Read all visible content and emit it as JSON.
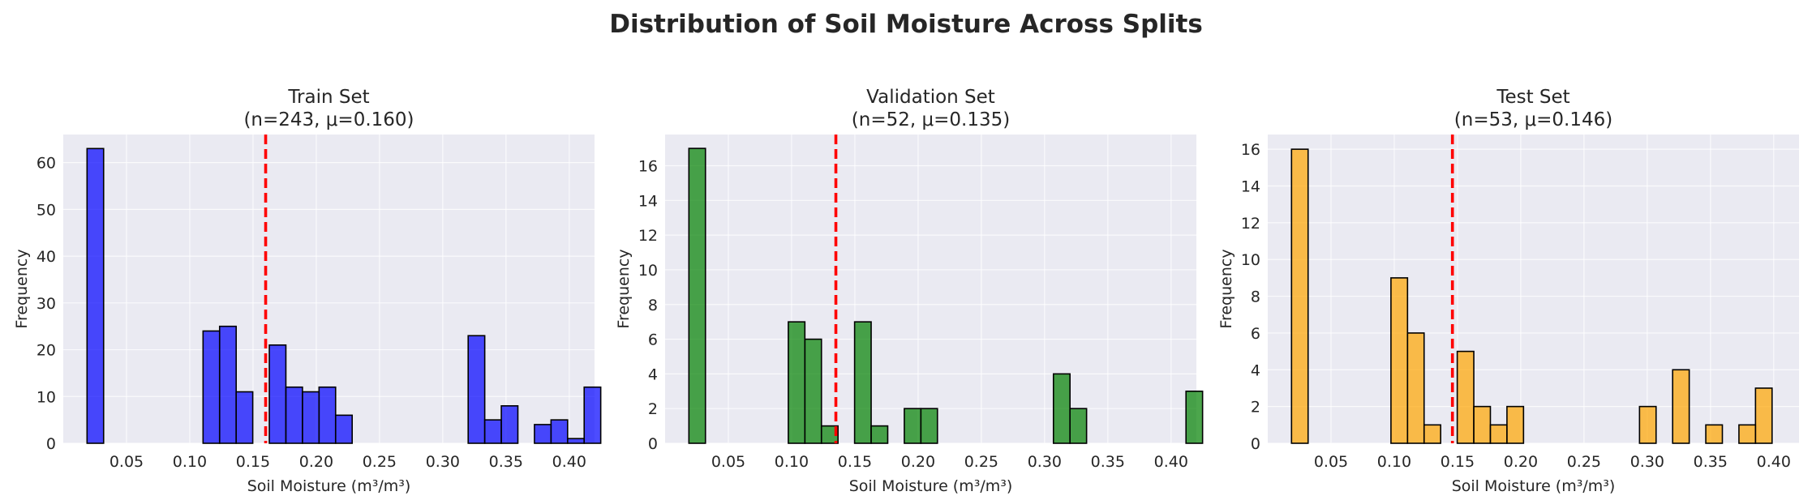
{
  "title": "Distribution of Soil Moisture Across Splits",
  "chart_data": [
    {
      "type": "bar",
      "title_line1": "Train Set",
      "title_line2": "(n=243, μ=0.160)",
      "xlabel": "Soil Moisture (m³/m³)",
      "ylabel": "Frequency",
      "xlim": [
        0.0,
        0.42
      ],
      "ylim": [
        0,
        66
      ],
      "xticks": [
        0.05,
        0.1,
        0.15,
        0.2,
        0.25,
        0.3,
        0.35,
        0.4
      ],
      "xtick_labels": [
        "0.05",
        "0.10",
        "0.15",
        "0.20",
        "0.25",
        "0.30",
        "0.35",
        "0.40"
      ],
      "yticks": [
        0,
        10,
        20,
        30,
        40,
        50,
        60
      ],
      "ytick_labels": [
        "0",
        "10",
        "20",
        "30",
        "40",
        "50",
        "60"
      ],
      "bin_start": 0.0188,
      "bin_width": 0.0131,
      "counts": [
        63,
        0,
        0,
        0,
        0,
        0,
        0,
        24,
        25,
        11,
        0,
        21,
        12,
        11,
        12,
        6,
        0,
        0,
        0,
        0,
        0,
        0,
        0,
        23,
        5,
        8,
        0,
        4,
        5,
        1,
        12
      ],
      "mean": 0.16,
      "bar_color": "#0000ff",
      "mean_line_color": "#ff0000",
      "grid": true
    },
    {
      "type": "bar",
      "title_line1": "Validation Set",
      "title_line2": "(n=52, μ=0.135)",
      "xlabel": "Soil Moisture (m³/m³)",
      "ylabel": "Frequency",
      "xlim": [
        0.0,
        0.42
      ],
      "ylim": [
        0,
        17.8
      ],
      "xticks": [
        0.05,
        0.1,
        0.15,
        0.2,
        0.25,
        0.3,
        0.35,
        0.4
      ],
      "xtick_labels": [
        "0.05",
        "0.10",
        "0.15",
        "0.20",
        "0.25",
        "0.30",
        "0.35",
        "0.40"
      ],
      "yticks": [
        0,
        2,
        4,
        6,
        8,
        10,
        12,
        14,
        16
      ],
      "ytick_labels": [
        "0",
        "2",
        "4",
        "6",
        "8",
        "10",
        "12",
        "14",
        "16"
      ],
      "bin_start": 0.0188,
      "bin_width": 0.0131,
      "counts": [
        17,
        0,
        0,
        0,
        0,
        0,
        7,
        6,
        1,
        0,
        7,
        1,
        0,
        2,
        2,
        0,
        0,
        0,
        0,
        0,
        0,
        0,
        4,
        2,
        0,
        0,
        0,
        0,
        0,
        0,
        3
      ],
      "mean": 0.135,
      "bar_color": "#008000",
      "mean_line_color": "#ff0000",
      "grid": true
    },
    {
      "type": "bar",
      "title_line1": "Test Set",
      "title_line2": "(n=53, μ=0.146)",
      "xlabel": "Soil Moisture (m³/m³)",
      "ylabel": "Frequency",
      "xlim": [
        0.0,
        0.42
      ],
      "ylim": [
        0,
        16.8
      ],
      "xticks": [
        0.05,
        0.1,
        0.15,
        0.2,
        0.25,
        0.3,
        0.35,
        0.4
      ],
      "xtick_labels": [
        "0.05",
        "0.10",
        "0.15",
        "0.20",
        "0.25",
        "0.30",
        "0.35",
        "0.40"
      ],
      "yticks": [
        0,
        2,
        4,
        6,
        8,
        10,
        12,
        14,
        16
      ],
      "ytick_labels": [
        "0",
        "2",
        "4",
        "6",
        "8",
        "10",
        "12",
        "14",
        "16"
      ],
      "bin_start": 0.0188,
      "bin_width": 0.0131,
      "counts": [
        16,
        0,
        0,
        0,
        0,
        0,
        9,
        6,
        1,
        0,
        5,
        2,
        1,
        2,
        0,
        0,
        0,
        0,
        0,
        0,
        0,
        2,
        0,
        4,
        0,
        1,
        0,
        1,
        3
      ],
      "mean": 0.146,
      "bar_color": "#ffa500",
      "mean_line_color": "#ff0000",
      "grid": true
    }
  ]
}
